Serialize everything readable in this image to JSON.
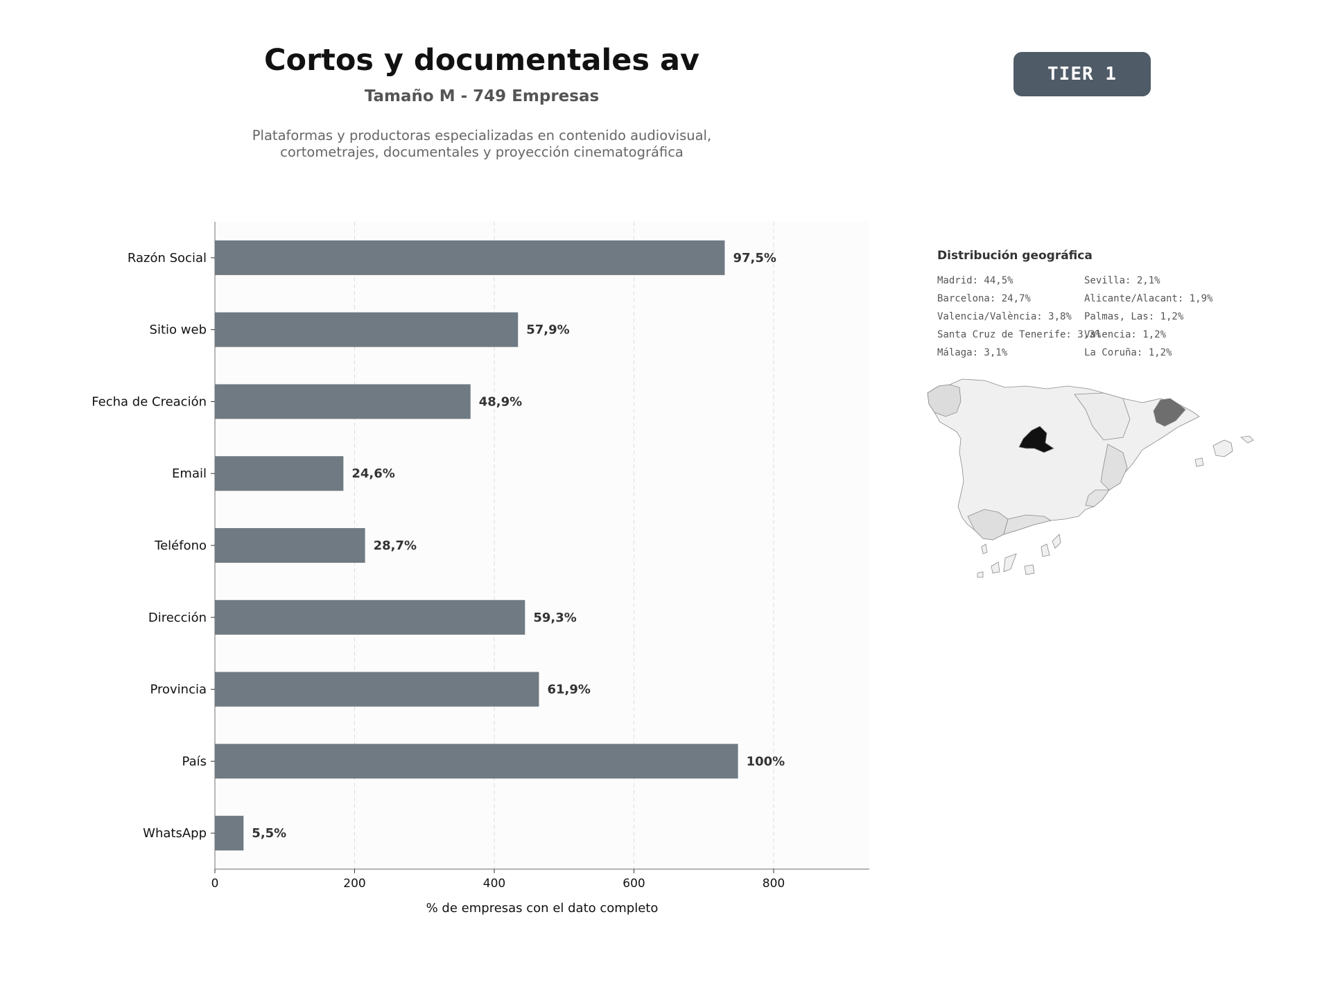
{
  "header": {
    "title": "Cortos y documentales av",
    "subtitle": "Tamaño M - 749 Empresas",
    "description_lines": [
      "Plataformas y productoras especializadas en contenido audiovisual,",
      "cortometrajes, documentales y proyección cinematográfica"
    ],
    "tier_label": "TIER 1"
  },
  "chart_data": {
    "type": "bar",
    "orientation": "horizontal",
    "categories": [
      "Razón Social",
      "Sitio web",
      "Fecha de Creación",
      "Email",
      "Teléfono",
      "Dirección",
      "Provincia",
      "País",
      "WhatsApp"
    ],
    "values": [
      730,
      434,
      366,
      184,
      215,
      444,
      464,
      749,
      41
    ],
    "value_labels": [
      "97,5%",
      "57,9%",
      "48,9%",
      "24,6%",
      "28,7%",
      "59,3%",
      "61,9%",
      "100%",
      "5,5%"
    ],
    "xlabel": "% de empresas con el dato completo",
    "xlim": [
      0,
      937
    ],
    "xticks": [
      0,
      200,
      400,
      600,
      800
    ],
    "grid": "vertical dashed",
    "bar_color": "#6f7a83"
  },
  "geo": {
    "title": "Distribución geográfica",
    "items": [
      "Madrid: 44,5%",
      "Barcelona: 24,7%",
      "Valencia/València: 3,8%",
      "Santa Cruz de Tenerife: 3,3%",
      "Málaga: 3,1%",
      "Sevilla: 2,1%",
      "Alicante/Alacant: 1,9%",
      "Palmas, Las: 1,2%",
      "Valencia: 1,2%",
      "La Coruña: 1,2%"
    ]
  },
  "colors": {
    "bar": "#6f7a83",
    "tier_badge": "#4f5b67",
    "map_top": "#111111",
    "map_second": "#6e6e6e",
    "map_mid": "#dedede",
    "map_low": "#f0f0f0"
  }
}
